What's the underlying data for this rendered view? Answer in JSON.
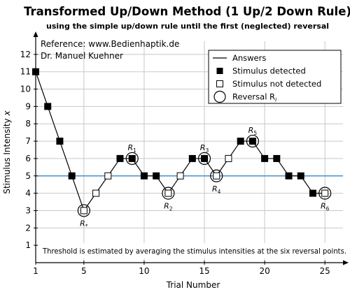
{
  "chart_data": {
    "type": "line",
    "title": "Transformed Up/Down Method (1 Up/2 Down Rule)",
    "subtitle": "using the simple up/down rule until the first (neglected) reversal",
    "reference_line1": "Reference: www.Bedienhaptik.de",
    "reference_line2": "Dr. Manuel Kuehner",
    "xlabel": "Trial Number",
    "ylabel": "Stimulus Intensity x",
    "xlim": [
      1,
      26.5
    ],
    "ylim": [
      0,
      13
    ],
    "xticks": [
      1,
      5,
      10,
      15,
      20,
      25
    ],
    "yticks": [
      1,
      2,
      3,
      4,
      5,
      6,
      7,
      8,
      9,
      10,
      11,
      12
    ],
    "x_gridlines": [
      5,
      10,
      15,
      20,
      25
    ],
    "y_gridlines": [
      1,
      2,
      3,
      4,
      5,
      6,
      7,
      8,
      9,
      10,
      11,
      12
    ],
    "threshold": 5,
    "series": [
      {
        "name": "Answers",
        "x": [
          1,
          2,
          3,
          4,
          5,
          6,
          7,
          8,
          9,
          10,
          11,
          12,
          13,
          14,
          15,
          16,
          17,
          18,
          19,
          20,
          21,
          22,
          23,
          24,
          25
        ],
        "y": [
          11,
          9,
          7,
          5,
          3,
          4,
          5,
          6,
          6,
          5,
          5,
          4,
          5,
          6,
          6,
          5,
          6,
          7,
          7,
          6,
          6,
          5,
          5,
          4,
          4
        ],
        "detected": [
          true,
          true,
          true,
          true,
          false,
          false,
          false,
          true,
          true,
          true,
          true,
          false,
          false,
          true,
          true,
          false,
          false,
          true,
          true,
          true,
          true,
          true,
          true,
          true,
          false
        ]
      }
    ],
    "reversals": [
      {
        "label": "R",
        "sub": "*",
        "x": 5,
        "y": 3,
        "label_pos": "below"
      },
      {
        "label": "R",
        "sub": "1",
        "x": 9,
        "y": 6,
        "label_pos": "above"
      },
      {
        "label": "R",
        "sub": "2",
        "x": 12,
        "y": 4,
        "label_pos": "below"
      },
      {
        "label": "R",
        "sub": "3",
        "x": 15,
        "y": 6,
        "label_pos": "above"
      },
      {
        "label": "R",
        "sub": "4",
        "x": 16,
        "y": 5,
        "label_pos": "below"
      },
      {
        "label": "R",
        "sub": "5",
        "x": 19,
        "y": 7,
        "label_pos": "above"
      },
      {
        "label": "R",
        "sub": "6",
        "x": 25,
        "y": 4,
        "label_pos": "below"
      }
    ],
    "legend": {
      "position": "top-right",
      "entries": [
        {
          "label": "Answers",
          "marker": "line"
        },
        {
          "label": "Stimulus detected",
          "marker": "filled-square"
        },
        {
          "label": "Stimulus not detected",
          "marker": "open-square"
        },
        {
          "label": "Reversal R",
          "sub": "i",
          "marker": "circle"
        }
      ]
    },
    "annotation": "Threshold is estimated by averaging the stimulus intensities at the six reversal points.",
    "colors": {
      "threshold_line": "#3a87c8",
      "grid": "#c8c8c8",
      "data": "#000000"
    }
  }
}
